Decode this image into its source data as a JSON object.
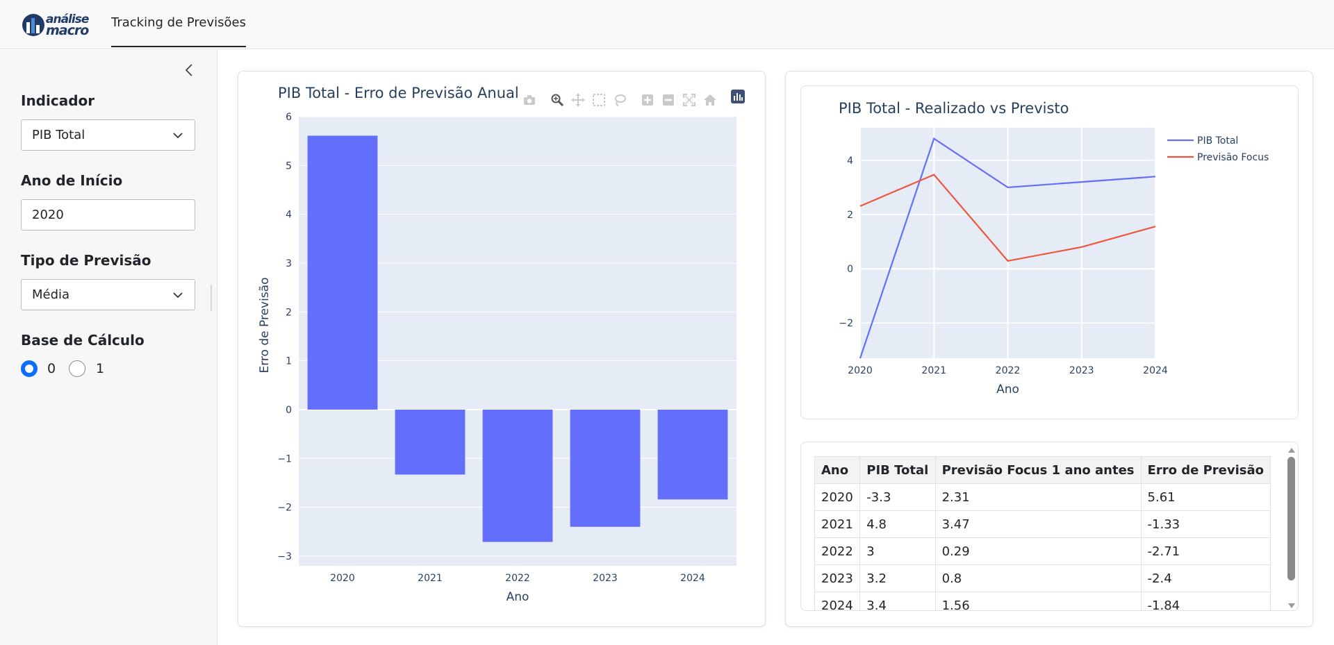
{
  "app": {
    "logo_text_line1": "análise",
    "logo_text_line2": "macro",
    "tab_label": "Tracking de Previsões"
  },
  "sidebar": {
    "indicador_label": "Indicador",
    "indicador_value": "PIB Total",
    "ano_inicio_label": "Ano de Início",
    "ano_inicio_value": "2020",
    "tipo_previsao_label": "Tipo de Previsão",
    "tipo_previsao_value": "Média",
    "base_calculo_label": "Base de Cálculo",
    "base_options": [
      "0",
      "1"
    ],
    "base_selected": "0"
  },
  "colors": {
    "bar": "#636efa",
    "line_realizado": "#636efa",
    "line_previsto": "#ef553b",
    "plot_bg": "#e5ecf6",
    "text": "#2a3f5f"
  },
  "modebar_icons": [
    "camera-icon",
    "zoom-icon",
    "pan-icon",
    "box-select-icon",
    "lasso-icon",
    "zoom-in-icon",
    "zoom-out-icon",
    "autoscale-icon",
    "reset-axes-icon",
    "plotly-logo-icon"
  ],
  "chart_data": [
    {
      "type": "bar",
      "title": "PIB Total - Erro de Previsão Anual",
      "xlabel": "Ano",
      "ylabel": "Erro de Previsão",
      "categories": [
        "2020",
        "2021",
        "2022",
        "2023",
        "2024"
      ],
      "values": [
        5.61,
        -1.33,
        -2.71,
        -2.4,
        -1.84
      ],
      "ylim": [
        -3.2,
        6.0
      ],
      "yticks": [
        "6",
        "5",
        "4",
        "3",
        "2",
        "1",
        "0",
        "−1",
        "−2",
        "−3"
      ],
      "grid": true
    },
    {
      "type": "line",
      "title": "PIB Total - Realizado vs Previsto",
      "xlabel": "Ano",
      "ylabel": "",
      "x": [
        "2020",
        "2021",
        "2022",
        "2023",
        "2024"
      ],
      "series": [
        {
          "name": "PIB Total",
          "values": [
            -3.3,
            4.8,
            3.0,
            3.2,
            3.4
          ]
        },
        {
          "name": "Previsão Focus",
          "values": [
            2.31,
            3.47,
            0.29,
            0.8,
            1.56
          ]
        }
      ],
      "ylim": [
        -3.3,
        5.2
      ],
      "yticks": [
        "4",
        "2",
        "0",
        "−2"
      ],
      "legend": "top-right",
      "grid": true
    }
  ],
  "table": {
    "columns": [
      "Ano",
      "PIB Total",
      "Previsão Focus 1 ano antes",
      "Erro de Previsão"
    ],
    "rows": [
      [
        "2020",
        "-3.3",
        "2.31",
        "5.61"
      ],
      [
        "2021",
        "4.8",
        "3.47",
        "-1.33"
      ],
      [
        "2022",
        "3",
        "0.29",
        "-2.71"
      ],
      [
        "2023",
        "3.2",
        "0.8",
        "-2.4"
      ],
      [
        "2024",
        "3.4",
        "1.56",
        "-1.84"
      ]
    ]
  }
}
